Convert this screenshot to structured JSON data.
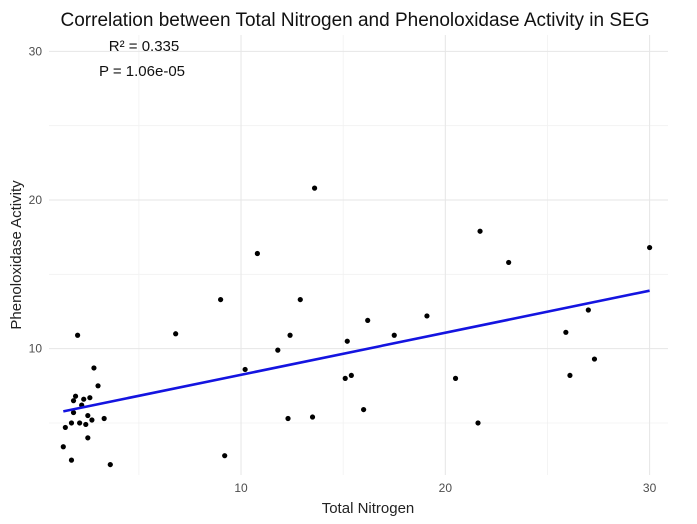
{
  "chart_data": {
    "type": "scatter",
    "title": "Correlation between Total Nitrogen and Phenoloxidase Activity in SEG",
    "xlabel": "Total Nitrogen",
    "ylabel": "Phenoloxidase Activity",
    "xlim": [
      0.6,
      30.9
    ],
    "ylim": [
      1.5,
      31.1
    ],
    "x_ticks": [
      10,
      20,
      30
    ],
    "y_ticks": [
      10,
      20,
      30
    ],
    "grid": true,
    "annotations": [
      "R² = 0.335",
      "P = 1.06e-05"
    ],
    "series": [
      {
        "marker_color": "#000000",
        "points": [
          [
            1.4,
            4.7
          ],
          [
            1.3,
            3.4
          ],
          [
            1.7,
            2.5
          ],
          [
            1.7,
            5.0
          ],
          [
            1.8,
            5.7
          ],
          [
            1.8,
            6.5
          ],
          [
            1.9,
            6.8
          ],
          [
            2.0,
            10.9
          ],
          [
            2.1,
            5.0
          ],
          [
            2.2,
            6.2
          ],
          [
            2.3,
            6.6
          ],
          [
            2.4,
            4.9
          ],
          [
            2.5,
            4.0
          ],
          [
            2.5,
            5.5
          ],
          [
            2.6,
            6.7
          ],
          [
            2.7,
            5.2
          ],
          [
            2.8,
            8.7
          ],
          [
            3.0,
            7.5
          ],
          [
            3.3,
            5.3
          ],
          [
            3.6,
            2.2
          ],
          [
            6.8,
            11.0
          ],
          [
            9.0,
            13.3
          ],
          [
            9.2,
            2.8
          ],
          [
            10.2,
            8.6
          ],
          [
            10.8,
            16.4
          ],
          [
            11.8,
            9.9
          ],
          [
            12.3,
            5.3
          ],
          [
            12.4,
            10.9
          ],
          [
            12.9,
            13.3
          ],
          [
            13.5,
            5.4
          ],
          [
            13.6,
            20.8
          ],
          [
            15.1,
            8.0
          ],
          [
            15.2,
            10.5
          ],
          [
            15.4,
            8.2
          ],
          [
            16.0,
            5.9
          ],
          [
            16.2,
            11.9
          ],
          [
            17.5,
            10.9
          ],
          [
            19.1,
            12.2
          ],
          [
            20.5,
            8.0
          ],
          [
            21.6,
            5.0
          ],
          [
            21.7,
            17.9
          ],
          [
            23.1,
            15.8
          ],
          [
            25.9,
            11.1
          ],
          [
            26.1,
            8.2
          ],
          [
            27.0,
            12.6
          ],
          [
            27.3,
            9.3
          ],
          [
            30.0,
            16.8
          ]
        ]
      }
    ],
    "trendline": {
      "color": "#1414e0",
      "x": [
        1.3,
        30.0
      ],
      "y": [
        5.78,
        13.9
      ]
    }
  }
}
